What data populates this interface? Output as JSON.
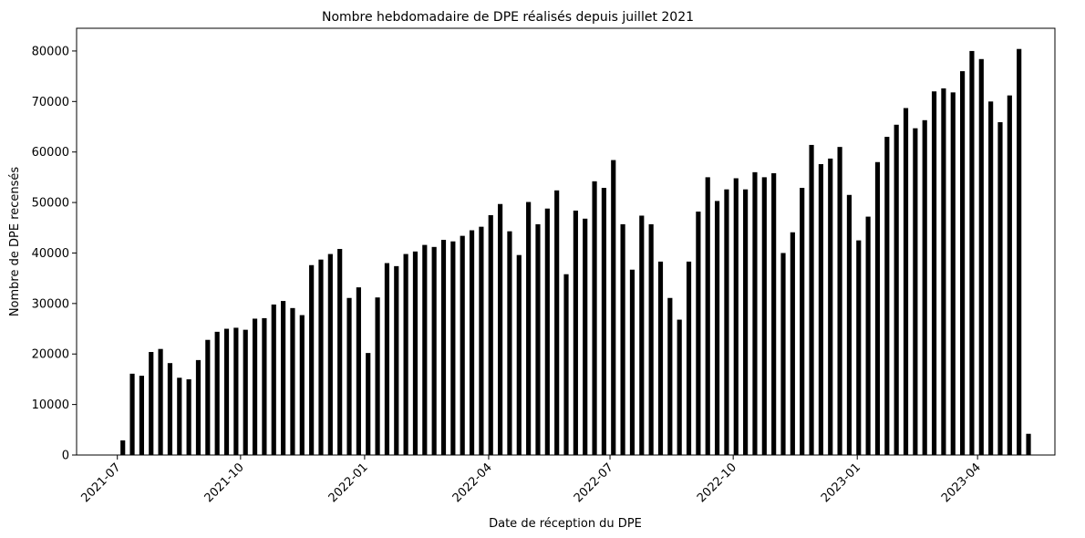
{
  "chart_data": {
    "type": "bar",
    "title": "Nombre hebdomadaire de DPE réalisés depuis juillet 2021",
    "xlabel": "Date de réception du DPE",
    "ylabel": "Nombre de DPE recensés",
    "color": "#000000",
    "categories": [
      null,
      null,
      null,
      null,
      null,
      null,
      null,
      null,
      null,
      null,
      null,
      null,
      null,
      null,
      null,
      null,
      null,
      null,
      null,
      null,
      null,
      null,
      null,
      null,
      null,
      null,
      null,
      null,
      null,
      null,
      null,
      null,
      null,
      null,
      null,
      null,
      null,
      null,
      null,
      null,
      null,
      null,
      null,
      null,
      null,
      null,
      null,
      null,
      null,
      null,
      null,
      null,
      null,
      null,
      null,
      null,
      null,
      null,
      null,
      null,
      null,
      null,
      null,
      null,
      null,
      null,
      null,
      null,
      null,
      null,
      null,
      null,
      null,
      null,
      null,
      null,
      null,
      null,
      null,
      null,
      null,
      null,
      null,
      null,
      null,
      null,
      null,
      null,
      null,
      null,
      null,
      null,
      null,
      null,
      null,
      null,
      null
    ],
    "values": [
      2900,
      16100,
      15700,
      20400,
      21000,
      18200,
      15300,
      15000,
      18800,
      22800,
      24400,
      25000,
      25200,
      24800,
      27000,
      27100,
      29800,
      30500,
      29100,
      27700,
      37600,
      38700,
      39800,
      40800,
      31100,
      33200,
      20200,
      31200,
      38000,
      37400,
      39800,
      40300,
      41600,
      41200,
      42600,
      42300,
      43400,
      44500,
      45200,
      47500,
      49700,
      44300,
      39600,
      50100,
      45700,
      48800,
      52400,
      35800,
      48400,
      46800,
      54200,
      52900,
      58400,
      45700,
      36700,
      47400,
      45700,
      38300,
      31100,
      26800,
      38300,
      48200,
      55000,
      50300,
      52600,
      54800,
      52600,
      56000,
      55000,
      55800,
      40000,
      44100,
      52900,
      61400,
      57600,
      58700,
      61000,
      51500,
      42500,
      47200,
      58000,
      63000,
      65400,
      68700,
      64700,
      66300,
      72000,
      72600,
      71800,
      76000,
      80000,
      78400,
      70000,
      65900,
      71200,
      80400,
      4200
    ],
    "xlim": [
      -4.9,
      98.8
    ],
    "xticks": [
      {
        "value": -0.58,
        "label": "2021-07"
      },
      {
        "value": 12.48,
        "label": "2021-10"
      },
      {
        "value": 25.63,
        "label": "2022-01"
      },
      {
        "value": 38.78,
        "label": "2022-04"
      },
      {
        "value": 51.64,
        "label": "2022-07"
      },
      {
        "value": 64.7,
        "label": "2022-10"
      },
      {
        "value": 77.85,
        "label": "2023-01"
      },
      {
        "value": 90.6,
        "label": "2023-04"
      }
    ],
    "ylim": [
      0,
      84500
    ],
    "yticks": [
      0,
      10000,
      20000,
      30000,
      40000,
      50000,
      60000,
      70000,
      80000
    ],
    "grid": false
  }
}
